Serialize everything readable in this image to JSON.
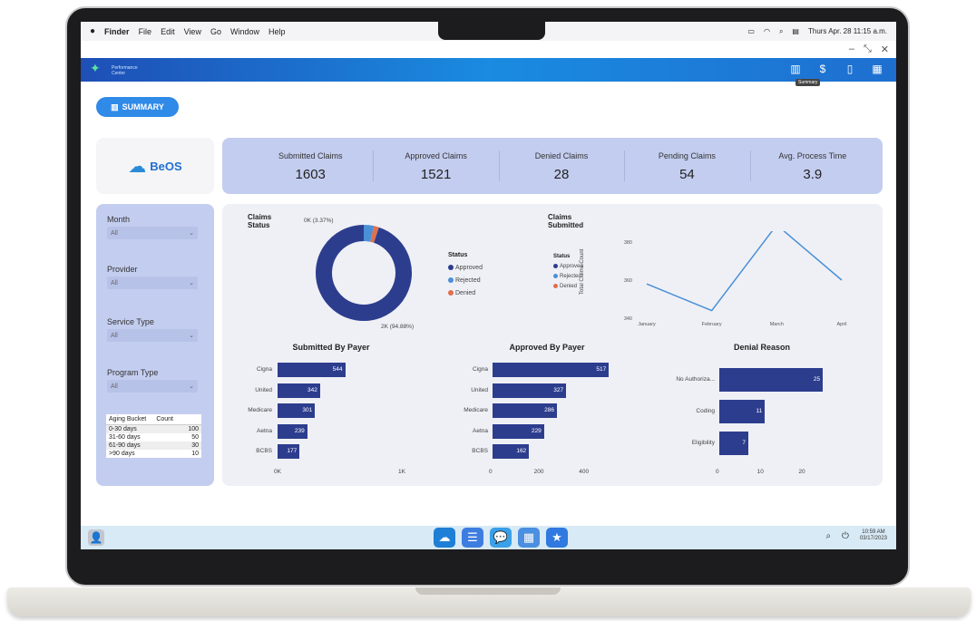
{
  "menubar": {
    "apple": "",
    "items": [
      "Finder",
      "File",
      "Edit",
      "View",
      "Go",
      "Window",
      "Help"
    ],
    "datetime": "Thurs Apr. 28 11:15 a.m."
  },
  "app": {
    "logo_text_1": "Performance",
    "logo_text_2": "Center",
    "tooltip": "Summary",
    "summary_label": "SUMMARY",
    "brand": "BeOS"
  },
  "kpis": [
    {
      "label": "Submitted Claims",
      "value": "1603"
    },
    {
      "label": "Approved Claims",
      "value": "1521"
    },
    {
      "label": "Denied Claims",
      "value": "28"
    },
    {
      "label": "Pending Claims",
      "value": "54"
    },
    {
      "label": "Avg. Process Time",
      "value": "3.9"
    }
  ],
  "filters": [
    {
      "label": "Month",
      "value": "All"
    },
    {
      "label": "Provider",
      "value": "All"
    },
    {
      "label": "Service Type",
      "value": "All"
    },
    {
      "label": "Program Type",
      "value": "All"
    }
  ],
  "aging": {
    "headers": [
      "Aging Bucket",
      "Count"
    ],
    "rows": [
      {
        "bucket": "0-30 days",
        "count": "100"
      },
      {
        "bucket": "31-60 days",
        "count": "50"
      },
      {
        "bucket": "61-90 days",
        "count": "30"
      },
      {
        "bucket": ">90 days",
        "count": "10"
      }
    ]
  },
  "colors": {
    "approved": "#2d3d8e",
    "rejected": "#4a90d6",
    "denied": "#e0704a"
  },
  "chart_data": [
    {
      "type": "pie",
      "title": "Claims Status",
      "legend_title": "Status",
      "labels": [
        "Approved",
        "Rejected",
        "Denied"
      ],
      "values": [
        94.88,
        3.37,
        1.75
      ],
      "annotations": [
        "2K (94.88%)",
        "0K (3.37%)"
      ]
    },
    {
      "type": "line",
      "title": "Claims Submitted",
      "legend_title": "Status",
      "legend": [
        "Approved",
        "Rejected",
        "Denied"
      ],
      "ylabel": "Total Claims Count",
      "categories": [
        "January",
        "February",
        "March",
        "April"
      ],
      "values": [
        358,
        344,
        389,
        360
      ],
      "ylim": [
        340,
        380
      ],
      "yticks": [
        "380",
        "360",
        "340"
      ]
    },
    {
      "type": "bar",
      "title": "Submitted By Payer",
      "categories": [
        "Cigna",
        "United",
        "Medicare",
        "Aetna",
        "BCBS"
      ],
      "values": [
        544,
        342,
        301,
        239,
        177
      ],
      "xlim": [
        0,
        1000
      ],
      "xticks": [
        "0K",
        "1K"
      ]
    },
    {
      "type": "bar",
      "title": "Approved By Payer",
      "categories": [
        "Cigna",
        "United",
        "Medicare",
        "Aetna",
        "BCBS"
      ],
      "values": [
        517,
        327,
        286,
        229,
        162
      ],
      "xlim": [
        0,
        540
      ],
      "xticks": [
        "0",
        "200",
        "400"
      ]
    },
    {
      "type": "bar",
      "title": "Denial Reason",
      "categories": [
        "No Authoriza...",
        "Coding",
        "Eligibility"
      ],
      "values": [
        25,
        11,
        7
      ],
      "xlim": [
        0,
        30
      ],
      "xticks": [
        "0",
        "10",
        "20"
      ]
    }
  ],
  "taskbar": {
    "time": "10:59 AM",
    "date": "03/17/2023"
  }
}
